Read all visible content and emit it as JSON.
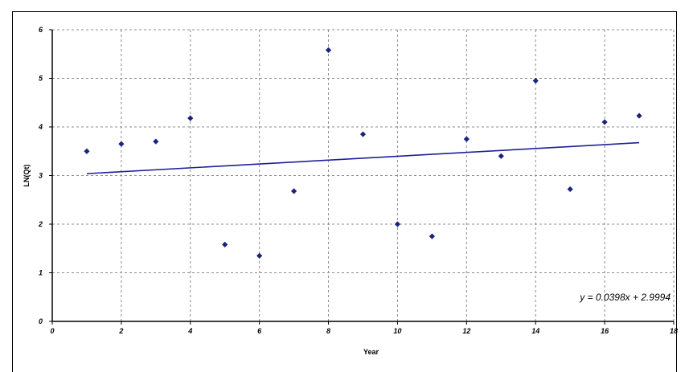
{
  "chart_data": {
    "type": "scatter",
    "xlabel": "Year",
    "ylabel": "LN(Qt)",
    "xlim": [
      0,
      18
    ],
    "ylim": [
      0,
      6
    ],
    "xticks": [
      0,
      2,
      4,
      6,
      8,
      10,
      12,
      14,
      16,
      18
    ],
    "yticks": [
      0,
      1,
      2,
      3,
      4,
      5,
      6
    ],
    "grid": true,
    "marker_color": "#1a237e",
    "trendline_color": "#1f1f9a",
    "series": [
      {
        "x": [
          1,
          2,
          3,
          4,
          5,
          6,
          7,
          8,
          9,
          10,
          11,
          12,
          13,
          14,
          15,
          16,
          17
        ],
        "y": [
          3.5,
          3.65,
          3.7,
          4.18,
          1.58,
          1.35,
          2.68,
          5.58,
          3.85,
          2.0,
          1.75,
          3.75,
          3.4,
          4.95,
          2.72,
          4.1,
          4.23
        ]
      }
    ],
    "trendline": {
      "slope": 0.0398,
      "intercept": 2.9994,
      "x_range": [
        1,
        17
      ],
      "equation": "y = 0.0398x + 2.9994"
    }
  }
}
